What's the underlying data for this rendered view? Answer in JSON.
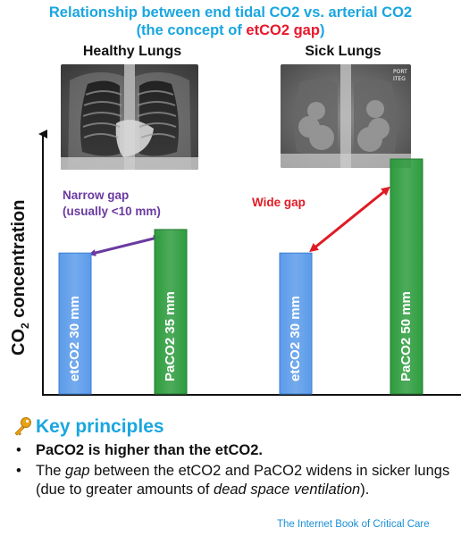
{
  "title": {
    "line1": "Relationship between end tidal CO2 vs. arterial CO2",
    "line2_pre": "(the concept of ",
    "line2_highlight": "etCO2 gap",
    "line2_post": ")"
  },
  "panels": {
    "healthy_label": "Healthy Lungs",
    "sick_label": "Sick Lungs",
    "xray_corner_text_1": "PORT",
    "xray_corner_text_2": "ITEG"
  },
  "axis": {
    "ylabel_main": "CO",
    "ylabel_sub": "2",
    "ylabel_rest": " concentration"
  },
  "annotations": {
    "narrow_gap_line1": "Narrow gap",
    "narrow_gap_line2": "(usually <10 mm)",
    "wide_gap": "Wide gap"
  },
  "chart_data": {
    "type": "bar",
    "categories": [
      "Healthy Lungs etCO2",
      "Healthy Lungs PaCO2",
      "Sick Lungs etCO2",
      "Sick Lungs PaCO2"
    ],
    "values": [
      30,
      35,
      30,
      50
    ],
    "labels": [
      "etCO2 30 mm",
      "PaCO2 35 mm",
      "etCO2 30 mm",
      "PaCO2 50 mm"
    ],
    "colors": [
      "#5b9bea",
      "#2e9c3e",
      "#5b9bea",
      "#2e9c3e"
    ],
    "ylabel": "CO2 concentration",
    "grid": false
  },
  "key_principles": {
    "icon": "key-icon",
    "heading": "Key principles",
    "bullet1": "PaCO2 is higher than the etCO2.",
    "bullet2_parts": [
      "The ",
      "gap",
      " between the etCO2 and PaCO2 widens in sicker lungs (due to greater amounts of ",
      "dead space ventilation",
      ")."
    ]
  },
  "footer": "The Internet Book of Critical Care",
  "colors": {
    "title_blue": "#1aa6e0",
    "highlight_red": "#e8192c",
    "narrow_purple": "#6a3aa0",
    "wide_red": "#e01b24"
  }
}
